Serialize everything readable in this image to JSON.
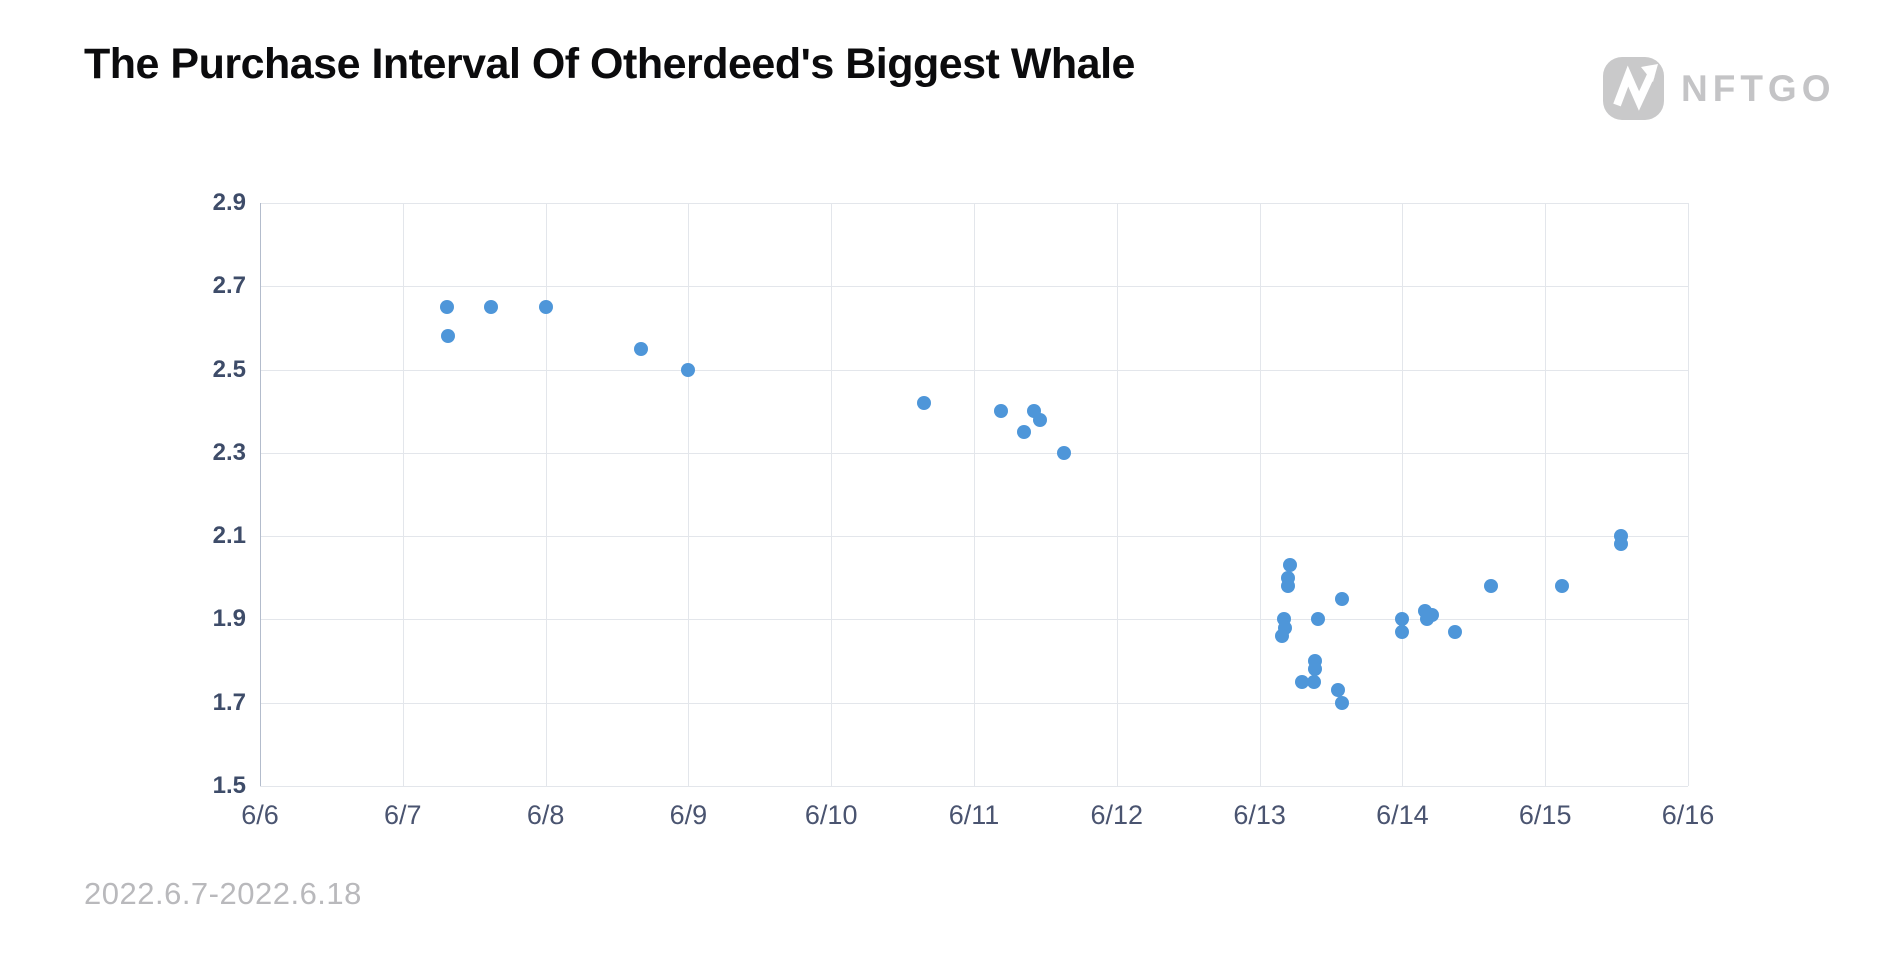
{
  "header": {
    "title": "The Purchase Interval Of Otherdeed's Biggest Whale",
    "logo_text": "NFTGO"
  },
  "footer": {
    "date_range": "2022.6.7-2022.6.18"
  },
  "colors": {
    "point": "#4e96d9",
    "grid": "#e3e6eb",
    "axis_line": "#b3bccc",
    "y_tick_label": "#3e4c69",
    "x_tick_label": "#4a5470",
    "title": "#0b0b0d",
    "footer": "#b9b9bc",
    "logo_gray": "#c9c9ca"
  },
  "chart_data": {
    "type": "scatter",
    "title": "The Purchase Interval Of Otherdeed's Biggest Whale",
    "subtitle": "2022.6.7-2022.6.18",
    "xlabel": "",
    "ylabel": "",
    "grid": true,
    "legend": false,
    "x_axis": {
      "tick_labels": [
        "6/6",
        "6/7",
        "6/8",
        "6/9",
        "6/10",
        "6/11",
        "6/12",
        "6/13",
        "6/14",
        "6/15",
        "6/16"
      ],
      "tick_values": [
        6,
        7,
        8,
        9,
        10,
        11,
        12,
        13,
        14,
        15,
        16
      ],
      "range": [
        6,
        16
      ],
      "unit": "date (June 2022)"
    },
    "y_axis": {
      "tick_values": [
        1.5,
        1.7,
        1.9,
        2.1,
        2.3,
        2.5,
        2.7,
        2.9
      ],
      "range": [
        1.5,
        2.9
      ],
      "unit": "purchase interval"
    },
    "points": [
      [
        7.31,
        2.65
      ],
      [
        7.32,
        2.58
      ],
      [
        7.62,
        2.65
      ],
      [
        8.0,
        2.65
      ],
      [
        8.67,
        2.55
      ],
      [
        9.0,
        2.5
      ],
      [
        10.65,
        2.42
      ],
      [
        11.19,
        2.4
      ],
      [
        11.42,
        2.4
      ],
      [
        11.46,
        2.38
      ],
      [
        11.35,
        2.35
      ],
      [
        11.63,
        2.3
      ],
      [
        13.21,
        2.03
      ],
      [
        13.2,
        2.0
      ],
      [
        13.2,
        1.98
      ],
      [
        13.17,
        1.9
      ],
      [
        13.18,
        1.88
      ],
      [
        13.16,
        1.86
      ],
      [
        13.41,
        1.9
      ],
      [
        13.39,
        1.8
      ],
      [
        13.39,
        1.78
      ],
      [
        13.3,
        1.75
      ],
      [
        13.38,
        1.75
      ],
      [
        13.55,
        1.73
      ],
      [
        13.58,
        1.7
      ],
      [
        13.58,
        1.95
      ],
      [
        14.0,
        1.9
      ],
      [
        14.0,
        1.87
      ],
      [
        14.16,
        1.92
      ],
      [
        14.21,
        1.91
      ],
      [
        14.17,
        1.9
      ],
      [
        14.37,
        1.87
      ],
      [
        14.62,
        1.98
      ],
      [
        15.12,
        1.98
      ],
      [
        15.53,
        2.1
      ],
      [
        15.53,
        2.08
      ]
    ]
  }
}
